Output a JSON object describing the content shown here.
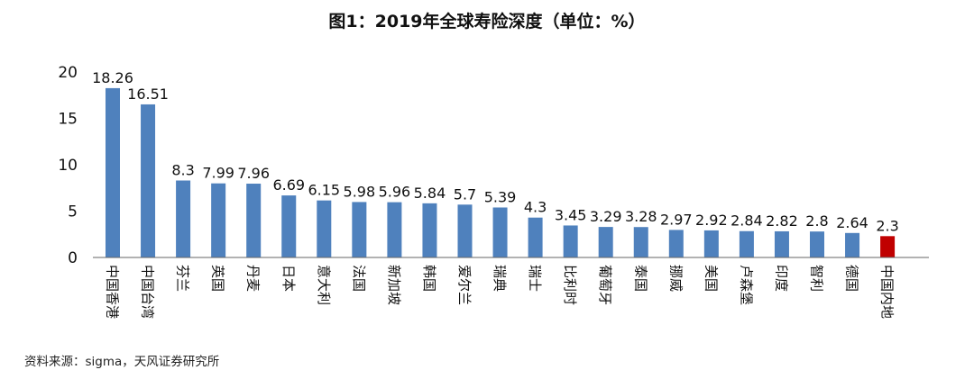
{
  "colors": {
    "bar": "#4f81bd",
    "highlight": "#c00000",
    "axis": "#666666",
    "text": "#111111"
  },
  "chart_data": {
    "type": "bar",
    "title": "图1：2019年全球寿险深度（单位：%）",
    "categories": [
      "中国香港",
      "中国台湾",
      "芬兰",
      "英国",
      "丹麦",
      "日本",
      "意大利",
      "法国",
      "新加坡",
      "韩国",
      "爱尔兰",
      "瑞典",
      "瑞士",
      "比利时",
      "葡萄牙",
      "泰国",
      "挪威",
      "美国",
      "卢森堡",
      "印度",
      "智利",
      "德国",
      "中国内地"
    ],
    "values": [
      18.26,
      16.51,
      8.3,
      7.99,
      7.96,
      6.69,
      6.15,
      5.98,
      5.96,
      5.84,
      5.7,
      5.39,
      4.3,
      3.45,
      3.29,
      3.28,
      2.97,
      2.92,
      2.84,
      2.82,
      2.8,
      2.64,
      2.3
    ],
    "value_labels": [
      "18.26",
      "16.51",
      "8.3",
      "7.99",
      "7.96",
      "6.69",
      "6.15",
      "5.98",
      "5.96",
      "5.84",
      "5.7",
      "5.39",
      "4.3",
      "3.45",
      "3.29",
      "3.28",
      "2.97",
      "2.92",
      "2.84",
      "2.82",
      "2.8",
      "2.64",
      "2.3"
    ],
    "highlight_category": "中国内地",
    "yticks": [
      "0",
      "5",
      "10",
      "15",
      "20"
    ],
    "ylim": [
      0,
      20
    ],
    "grid": false,
    "legend": "none"
  },
  "source": "资料来源：sigma，天风证券研究所"
}
